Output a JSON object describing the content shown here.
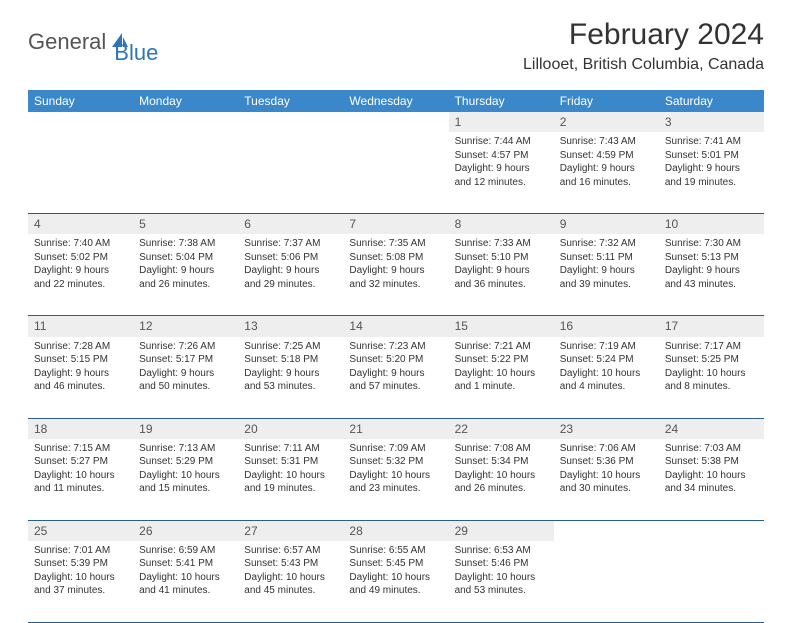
{
  "logo": {
    "part1": "General",
    "part2": "Blue"
  },
  "title": "February 2024",
  "location": "Lillooet, British Columbia, Canada",
  "colors": {
    "header_bg": "#3a88c9",
    "border": "#2c5d8a",
    "daynum_bg": "#eeeeee",
    "text": "#333333",
    "logo_blue": "#2c75b8"
  },
  "dow": [
    "Sunday",
    "Monday",
    "Tuesday",
    "Wednesday",
    "Thursday",
    "Friday",
    "Saturday"
  ],
  "weeks": [
    [
      null,
      null,
      null,
      null,
      {
        "n": "1",
        "sr": "Sunrise: 7:44 AM",
        "ss": "Sunset: 4:57 PM",
        "d1": "Daylight: 9 hours",
        "d2": "and 12 minutes."
      },
      {
        "n": "2",
        "sr": "Sunrise: 7:43 AM",
        "ss": "Sunset: 4:59 PM",
        "d1": "Daylight: 9 hours",
        "d2": "and 16 minutes."
      },
      {
        "n": "3",
        "sr": "Sunrise: 7:41 AM",
        "ss": "Sunset: 5:01 PM",
        "d1": "Daylight: 9 hours",
        "d2": "and 19 minutes."
      }
    ],
    [
      {
        "n": "4",
        "sr": "Sunrise: 7:40 AM",
        "ss": "Sunset: 5:02 PM",
        "d1": "Daylight: 9 hours",
        "d2": "and 22 minutes."
      },
      {
        "n": "5",
        "sr": "Sunrise: 7:38 AM",
        "ss": "Sunset: 5:04 PM",
        "d1": "Daylight: 9 hours",
        "d2": "and 26 minutes."
      },
      {
        "n": "6",
        "sr": "Sunrise: 7:37 AM",
        "ss": "Sunset: 5:06 PM",
        "d1": "Daylight: 9 hours",
        "d2": "and 29 minutes."
      },
      {
        "n": "7",
        "sr": "Sunrise: 7:35 AM",
        "ss": "Sunset: 5:08 PM",
        "d1": "Daylight: 9 hours",
        "d2": "and 32 minutes."
      },
      {
        "n": "8",
        "sr": "Sunrise: 7:33 AM",
        "ss": "Sunset: 5:10 PM",
        "d1": "Daylight: 9 hours",
        "d2": "and 36 minutes."
      },
      {
        "n": "9",
        "sr": "Sunrise: 7:32 AM",
        "ss": "Sunset: 5:11 PM",
        "d1": "Daylight: 9 hours",
        "d2": "and 39 minutes."
      },
      {
        "n": "10",
        "sr": "Sunrise: 7:30 AM",
        "ss": "Sunset: 5:13 PM",
        "d1": "Daylight: 9 hours",
        "d2": "and 43 minutes."
      }
    ],
    [
      {
        "n": "11",
        "sr": "Sunrise: 7:28 AM",
        "ss": "Sunset: 5:15 PM",
        "d1": "Daylight: 9 hours",
        "d2": "and 46 minutes."
      },
      {
        "n": "12",
        "sr": "Sunrise: 7:26 AM",
        "ss": "Sunset: 5:17 PM",
        "d1": "Daylight: 9 hours",
        "d2": "and 50 minutes."
      },
      {
        "n": "13",
        "sr": "Sunrise: 7:25 AM",
        "ss": "Sunset: 5:18 PM",
        "d1": "Daylight: 9 hours",
        "d2": "and 53 minutes."
      },
      {
        "n": "14",
        "sr": "Sunrise: 7:23 AM",
        "ss": "Sunset: 5:20 PM",
        "d1": "Daylight: 9 hours",
        "d2": "and 57 minutes."
      },
      {
        "n": "15",
        "sr": "Sunrise: 7:21 AM",
        "ss": "Sunset: 5:22 PM",
        "d1": "Daylight: 10 hours",
        "d2": "and 1 minute."
      },
      {
        "n": "16",
        "sr": "Sunrise: 7:19 AM",
        "ss": "Sunset: 5:24 PM",
        "d1": "Daylight: 10 hours",
        "d2": "and 4 minutes."
      },
      {
        "n": "17",
        "sr": "Sunrise: 7:17 AM",
        "ss": "Sunset: 5:25 PM",
        "d1": "Daylight: 10 hours",
        "d2": "and 8 minutes."
      }
    ],
    [
      {
        "n": "18",
        "sr": "Sunrise: 7:15 AM",
        "ss": "Sunset: 5:27 PM",
        "d1": "Daylight: 10 hours",
        "d2": "and 11 minutes."
      },
      {
        "n": "19",
        "sr": "Sunrise: 7:13 AM",
        "ss": "Sunset: 5:29 PM",
        "d1": "Daylight: 10 hours",
        "d2": "and 15 minutes."
      },
      {
        "n": "20",
        "sr": "Sunrise: 7:11 AM",
        "ss": "Sunset: 5:31 PM",
        "d1": "Daylight: 10 hours",
        "d2": "and 19 minutes."
      },
      {
        "n": "21",
        "sr": "Sunrise: 7:09 AM",
        "ss": "Sunset: 5:32 PM",
        "d1": "Daylight: 10 hours",
        "d2": "and 23 minutes."
      },
      {
        "n": "22",
        "sr": "Sunrise: 7:08 AM",
        "ss": "Sunset: 5:34 PM",
        "d1": "Daylight: 10 hours",
        "d2": "and 26 minutes."
      },
      {
        "n": "23",
        "sr": "Sunrise: 7:06 AM",
        "ss": "Sunset: 5:36 PM",
        "d1": "Daylight: 10 hours",
        "d2": "and 30 minutes."
      },
      {
        "n": "24",
        "sr": "Sunrise: 7:03 AM",
        "ss": "Sunset: 5:38 PM",
        "d1": "Daylight: 10 hours",
        "d2": "and 34 minutes."
      }
    ],
    [
      {
        "n": "25",
        "sr": "Sunrise: 7:01 AM",
        "ss": "Sunset: 5:39 PM",
        "d1": "Daylight: 10 hours",
        "d2": "and 37 minutes."
      },
      {
        "n": "26",
        "sr": "Sunrise: 6:59 AM",
        "ss": "Sunset: 5:41 PM",
        "d1": "Daylight: 10 hours",
        "d2": "and 41 minutes."
      },
      {
        "n": "27",
        "sr": "Sunrise: 6:57 AM",
        "ss": "Sunset: 5:43 PM",
        "d1": "Daylight: 10 hours",
        "d2": "and 45 minutes."
      },
      {
        "n": "28",
        "sr": "Sunrise: 6:55 AM",
        "ss": "Sunset: 5:45 PM",
        "d1": "Daylight: 10 hours",
        "d2": "and 49 minutes."
      },
      {
        "n": "29",
        "sr": "Sunrise: 6:53 AM",
        "ss": "Sunset: 5:46 PM",
        "d1": "Daylight: 10 hours",
        "d2": "and 53 minutes."
      },
      null,
      null
    ]
  ]
}
